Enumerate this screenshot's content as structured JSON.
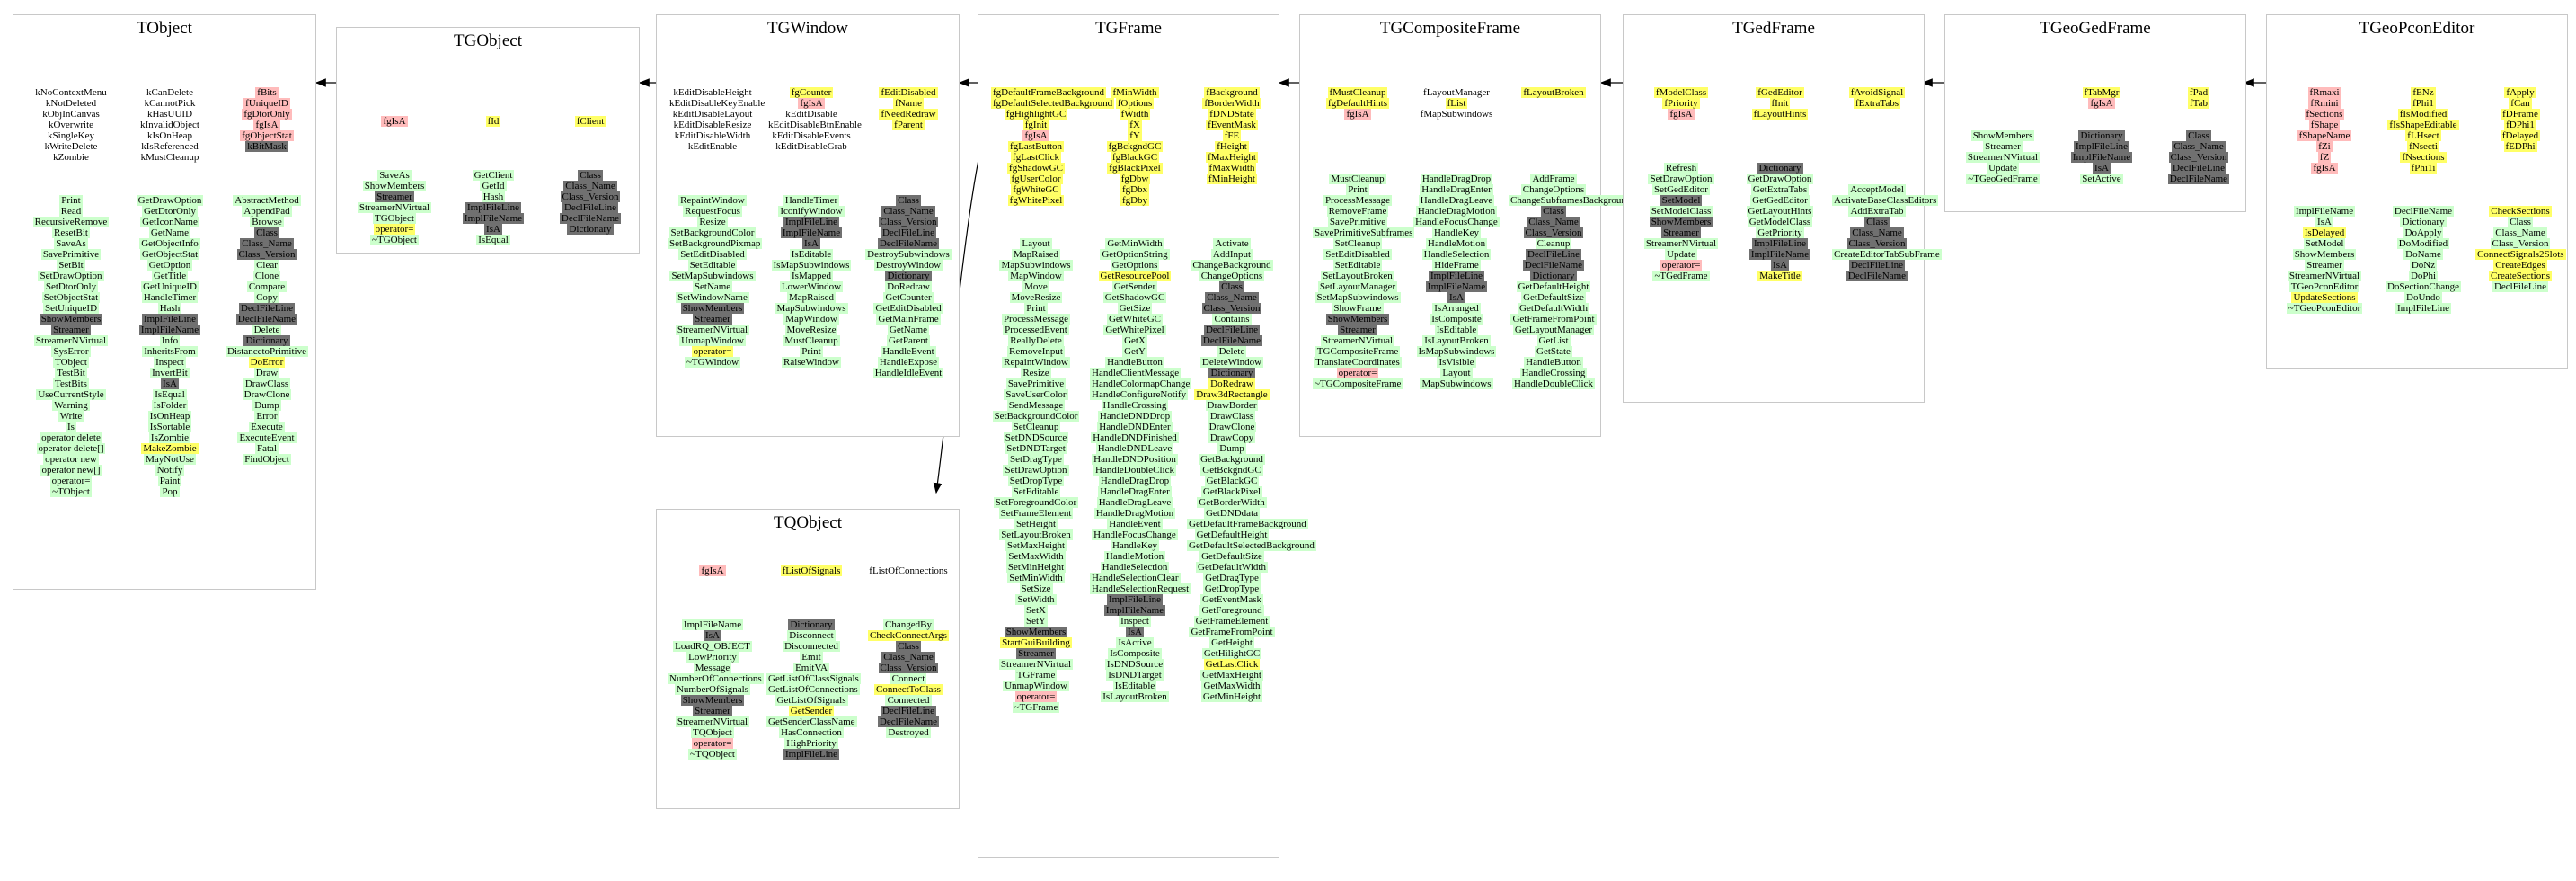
{
  "colors": {
    "public": "#ccffcc",
    "getter": "#ffff66",
    "protected": "#ffbbbb",
    "inherited": "#707070",
    "border": "#c8c8c8",
    "arrow": "#000000"
  },
  "classes": [
    {
      "id": "TObject",
      "title": "TObject",
      "cols": [
        [
          "d:kNoContextMenu",
          "d:kNotDeleted",
          "d:kObjInCanvas",
          "d:kOverwrite",
          "d:kSingleKey",
          "d:kWriteDelete",
          "d:kZombie",
          "",
          "",
          "",
          "p:Print",
          "p:Read",
          "p:RecursiveRemove",
          "p:ResetBit",
          "p:SaveAs",
          "p:SavePrimitive",
          "p:SetBit",
          "p:SetDrawOption",
          "p:SetDtorOnly",
          "p:SetObjectStat",
          "p:SetUniqueID",
          "i:ShowMembers",
          "i:Streamer",
          "p:StreamerNVirtual",
          "p:SysError",
          "p:TObject",
          "p:TestBit",
          "p:TestBits",
          "p:UseCurrentStyle",
          "p:Warning",
          "p:Write",
          "p:Is",
          "p:operator delete",
          "p:operator delete[]",
          "p:operator new",
          "p:operator new[]",
          "p:operator=",
          "p:~TObject"
        ],
        [
          "d:kCanDelete",
          "d:kCannotPick",
          "d:kHasUUID",
          "d:kInvalidObject",
          "d:kIsOnHeap",
          "d:kIsReferenced",
          "d:kMustCleanup",
          "",
          "",
          "",
          "p:GetDrawOption",
          "p:GetDtorOnly",
          "p:GetIconName",
          "p:GetName",
          "p:GetObjectInfo",
          "p:GetObjectStat",
          "p:GetOption",
          "p:GetTitle",
          "p:GetUniqueID",
          "p:HandleTimer",
          "p:Hash",
          "i:ImplFileLine",
          "i:ImplFileName",
          "p:Info",
          "p:InheritsFrom",
          "p:Inspect",
          "p:InvertBit",
          "i:IsA",
          "p:IsEqual",
          "p:IsFolder",
          "p:IsOnHeap",
          "p:IsSortable",
          "p:IsZombie",
          "g:MakeZombie",
          "p:MayNotUse",
          "p:Notify",
          "p:Paint",
          "p:Pop"
        ],
        [
          "r:fBits",
          "r:fUniqueID",
          "r:fgDtorOnly",
          "r:fgIsA",
          "r:fgObjectStat",
          "i:kBitMask",
          "",
          "",
          "",
          "",
          "p:AbstractMethod",
          "p:AppendPad",
          "p:Browse",
          "i:Class",
          "i:Class_Name",
          "i:Class_Version",
          "p:Clear",
          "p:Clone",
          "p:Compare",
          "p:Copy",
          "i:DeclFileLine",
          "i:DeclFileName",
          "p:Delete",
          "i:Dictionary",
          "p:DistancetoPrimitive",
          "g:DoError",
          "p:Draw",
          "p:DrawClass",
          "p:DrawClone",
          "p:Dump",
          "p:Error",
          "p:Execute",
          "p:ExecuteEvent",
          "p:Fatal",
          "p:FindObject"
        ]
      ]
    },
    {
      "id": "TGObject",
      "title": "TGObject",
      "cols": [
        [
          "r:fgIsA",
          "",
          "",
          "",
          "",
          "p:SaveAs",
          "p:ShowMembers",
          "i:Streamer",
          "p:StreamerNVirtual",
          "p:TGObject",
          "g:operator=",
          "p:~TGObject"
        ],
        [
          "g:fId",
          "",
          "",
          "",
          "",
          "p:GetClient",
          "p:GetId",
          "p:Hash",
          "i:ImplFileLine",
          "i:ImplFileName",
          "i:IsA",
          "p:IsEqual"
        ],
        [
          "g:fClient",
          "",
          "",
          "",
          "",
          "i:Class",
          "i:Class_Name",
          "i:Class_Version",
          "i:DeclFileLine",
          "i:DeclFileName",
          "i:Dictionary"
        ]
      ]
    },
    {
      "id": "TGWindow",
      "title": "TGWindow",
      "cols": [
        [
          "d:kEditDisableHeight",
          "d:kEditDisableKeyEnable",
          "d:kEditDisableLayout",
          "d:kEditDisableResize",
          "d:kEditDisableWidth",
          "d:kEditEnable",
          "",
          "",
          "",
          "",
          "p:RepaintWindow",
          "p:RequestFocus",
          "p:Resize",
          "p:SetBackgroundColor",
          "p:SetBackgroundPixmap",
          "p:SetEditDisabled",
          "p:SetEditable",
          "p:SetMapSubwindows",
          "p:SetName",
          "p:SetWindowName",
          "i:ShowMembers",
          "i:Streamer",
          "p:StreamerNVirtual",
          "p:UnmapWindow",
          "g:operator=",
          "p:~TGWindow"
        ],
        [
          "g:fgCounter",
          "r:fgIsA",
          "d:kEditDisable",
          "d:kEditDisableBtnEnable",
          "d:kEditDisableEvents",
          "d:kEditDisableGrab",
          "",
          "",
          "",
          "",
          "p:HandleTimer",
          "p:IconifyWindow",
          "i:ImplFileLine",
          "i:ImplFileName",
          "i:IsA",
          "p:IsEditable",
          "p:IsMapSubwindows",
          "p:IsMapped",
          "p:LowerWindow",
          "p:MapRaised",
          "p:MapSubwindows",
          "p:MapWindow",
          "p:MoveResize",
          "p:MustCleanup",
          "p:Print",
          "p:RaiseWindow"
        ],
        [
          "g:fEditDisabled",
          "g:fName",
          "g:fNeedRedraw",
          "g:fParent",
          "",
          "",
          "",
          "",
          "",
          "",
          "i:Class",
          "i:Class_Name",
          "i:Class_Version",
          "i:DeclFileLine",
          "i:DeclFileName",
          "p:DestroySubwindows",
          "p:DestroyWindow",
          "i:Dictionary",
          "p:DoRedraw",
          "p:GetCounter",
          "p:GetEditDisabled",
          "p:GetMainFrame",
          "p:GetName",
          "p:GetParent",
          "p:HandleEvent",
          "p:HandleExpose",
          "p:HandleIdleEvent"
        ]
      ]
    },
    {
      "id": "TQObject",
      "title": "TQObject",
      "cols": [
        [
          "r:fgIsA",
          "",
          "",
          "",
          "",
          "p:ImplFileName",
          "i:IsA",
          "p:LoadRQ_OBJECT",
          "p:LowPriority",
          "p:Message",
          "p:NumberOfConnections",
          "p:NumberOfSignals",
          "i:ShowMembers",
          "i:Streamer",
          "p:StreamerNVirtual",
          "p:TQObject",
          "r:operator=",
          "p:~TQObject"
        ],
        [
          "g:fListOfSignals",
          "",
          "",
          "",
          "",
          "i:Dictionary",
          "p:Disconnect",
          "p:Disconnected",
          "p:Emit",
          "p:EmitVA",
          "p:GetListOfClassSignals",
          "p:GetListOfConnections",
          "p:GetListOfSignals",
          "g:GetSender",
          "p:GetSenderClassName",
          "p:HasConnection",
          "p:HighPriority",
          "i:ImplFileLine"
        ],
        [
          "d:fListOfConnections",
          "",
          "",
          "",
          "",
          "p:ChangedBy",
          "g:CheckConnectArgs",
          "i:Class",
          "i:Class_Name",
          "i:Class_Version",
          "p:Connect",
          "g:ConnectToClass",
          "p:Connected",
          "i:DeclFileLine",
          "i:DeclFileName",
          "p:Destroyed"
        ]
      ]
    },
    {
      "id": "TGFrame",
      "title": "TGFrame",
      "cols": [
        [
          "g:fgDefaultFrameBackground",
          "g:fgDefaultSelectedBackground",
          "g:fgHighlightGC",
          "g:fgInit",
          "r:fgIsA",
          "g:fgLastButton",
          "g:fgLastClick",
          "g:fgShadowGC",
          "g:fgUserColor",
          "g:fgWhiteGC",
          "g:fgWhitePixel",
          "",
          "",
          "",
          "p:Layout",
          "p:MapRaised",
          "p:MapSubwindows",
          "p:MapWindow",
          "p:Move",
          "p:MoveResize",
          "p:Print",
          "p:ProcessMessage",
          "p:ProcessedEvent",
          "p:ReallyDelete",
          "p:RemoveInput",
          "p:RepaintWindow",
          "p:Resize",
          "p:SavePrimitive",
          "p:SaveUserColor",
          "p:SendMessage",
          "p:SetBackgroundColor",
          "p:SetCleanup",
          "p:SetDNDSource",
          "p:SetDNDTarget",
          "p:SetDragType",
          "p:SetDrawOption",
          "p:SetDropType",
          "p:SetEditable",
          "p:SetForegroundColor",
          "p:SetFrameElement",
          "p:SetHeight",
          "p:SetLayoutBroken",
          "p:SetMaxHeight",
          "p:SetMaxWidth",
          "p:SetMinHeight",
          "p:SetMinWidth",
          "p:SetSize",
          "p:SetWidth",
          "p:SetX",
          "p:SetY",
          "i:ShowMembers",
          "g:StartGuiBuilding",
          "i:Streamer",
          "p:StreamerNVirtual",
          "p:TGFrame",
          "p:UnmapWindow",
          "r:operator=",
          "p:~TGFrame"
        ],
        [
          "g:fMinWidth",
          "g:fOptions",
          "g:fWidth",
          "g:fX",
          "g:fY",
          "g:fgBckgndGC",
          "g:fgBlackGC",
          "g:fgBlackPixel",
          "g:fgDbw",
          "g:fgDbx",
          "g:fgDby",
          "",
          "",
          "",
          "p:GetMinWidth",
          "p:GetOptionString",
          "p:GetOptions",
          "g:GetResourcePool",
          "p:GetSender",
          "p:GetShadowGC",
          "p:GetSize",
          "p:GetWhiteGC",
          "p:GetWhitePixel",
          "p:GetX",
          "p:GetY",
          "p:HandleButton",
          "p:HandleClientMessage",
          "p:HandleColormapChange",
          "p:HandleConfigureNotify",
          "p:HandleCrossing",
          "p:HandleDNDDrop",
          "p:HandleDNDEnter",
          "p:HandleDNDFinished",
          "p:HandleDNDLeave",
          "p:HandleDNDPosition",
          "p:HandleDoubleClick",
          "p:HandleDragDrop",
          "p:HandleDragEnter",
          "p:HandleDragLeave",
          "p:HandleDragMotion",
          "p:HandleEvent",
          "p:HandleFocusChange",
          "p:HandleKey",
          "p:HandleMotion",
          "p:HandleSelection",
          "p:HandleSelectionClear",
          "p:HandleSelectionRequest",
          "i:ImplFileLine",
          "i:ImplFileName",
          "p:Inspect",
          "i:IsA",
          "p:IsActive",
          "p:IsComposite",
          "p:IsDNDSource",
          "p:IsDNDTarget",
          "p:IsEditable",
          "p:IsLayoutBroken"
        ],
        [
          "g:fBackground",
          "g:fBorderWidth",
          "g:fDNDState",
          "g:fEventMask",
          "g:fFE",
          "g:fHeight",
          "g:fMaxHeight",
          "g:fMaxWidth",
          "g:fMinHeight",
          "",
          "",
          "",
          "",
          "",
          "p:Activate",
          "p:AddInput",
          "p:ChangeBackground",
          "p:ChangeOptions",
          "i:Class",
          "i:Class_Name",
          "i:Class_Version",
          "p:Contains",
          "i:DeclFileLine",
          "i:DeclFileName",
          "p:Delete",
          "p:DeleteWindow",
          "i:Dictionary",
          "g:DoRedraw",
          "g:Draw3dRectangle",
          "p:DrawBorder",
          "p:DrawClass",
          "p:DrawClone",
          "p:DrawCopy",
          "p:Dump",
          "p:GetBackground",
          "p:GetBckgndGC",
          "p:GetBlackGC",
          "p:GetBlackPixel",
          "p:GetBorderWidth",
          "p:GetDNDdata",
          "p:GetDefaultFrameBackground",
          "p:GetDefaultHeight",
          "p:GetDefaultSelectedBackground",
          "p:GetDefaultSize",
          "p:GetDefaultWidth",
          "p:GetDragType",
          "p:GetDropType",
          "p:GetEventMask",
          "p:GetForeground",
          "p:GetFrameElement",
          "p:GetFrameFromPoint",
          "p:GetHeight",
          "p:GetHilightGC",
          "g:GetLastClick",
          "p:GetMaxHeight",
          "p:GetMaxWidth",
          "p:GetMinHeight"
        ]
      ]
    },
    {
      "id": "TGCompositeFrame",
      "title": "TGCompositeFrame",
      "cols": [
        [
          "g:fMustCleanup",
          "g:fgDefaultHints",
          "r:fgIsA",
          "",
          "",
          "",
          "",
          "",
          "p:MustCleanup",
          "p:Print",
          "p:ProcessMessage",
          "p:RemoveFrame",
          "p:SavePrimitive",
          "p:SavePrimitiveSubframes",
          "p:SetCleanup",
          "p:SetEditDisabled",
          "p:SetEditable",
          "p:SetLayoutBroken",
          "p:SetLayoutManager",
          "p:SetMapSubwindows",
          "p:ShowFrame",
          "i:ShowMembers",
          "i:Streamer",
          "p:StreamerNVirtual",
          "p:TGCompositeFrame",
          "p:TranslateCoordinates",
          "r:operator=",
          "p:~TGCompositeFrame"
        ],
        [
          "d:fLayoutManager",
          "g:fList",
          "d:fMapSubwindows",
          "",
          "",
          "",
          "",
          "",
          "p:HandleDragDrop",
          "p:HandleDragEnter",
          "p:HandleDragLeave",
          "p:HandleDragMotion",
          "p:HandleFocusChange",
          "p:HandleKey",
          "p:HandleMotion",
          "p:HandleSelection",
          "p:HideFrame",
          "i:ImplFileLine",
          "i:ImplFileName",
          "i:IsA",
          "p:IsArranged",
          "p:IsComposite",
          "p:IsEditable",
          "p:IsLayoutBroken",
          "p:IsMapSubwindows",
          "p:IsVisible",
          "p:Layout",
          "p:MapSubwindows"
        ],
        [
          "g:fLayoutBroken",
          "",
          "",
          "",
          "",
          "",
          "",
          "",
          "p:AddFrame",
          "p:ChangeOptions",
          "p:ChangeSubframesBackground",
          "i:Class",
          "i:Class_Name",
          "i:Class_Version",
          "p:Cleanup",
          "i:DeclFileLine",
          "i:DeclFileName",
          "i:Dictionary",
          "p:GetDefaultHeight",
          "p:GetDefaultSize",
          "p:GetDefaultWidth",
          "p:GetFrameFromPoint",
          "p:GetLayoutManager",
          "p:GetList",
          "p:GetState",
          "p:HandleButton",
          "p:HandleCrossing",
          "p:HandleDoubleClick"
        ]
      ]
    },
    {
      "id": "TGedFrame",
      "title": "TGedFrame",
      "cols": [
        [
          "g:fModelClass",
          "g:fPriority",
          "r:fgIsA",
          "",
          "",
          "",
          "",
          "p:Refresh",
          "p:SetDrawOption",
          "p:SetGedEditor",
          "i:SetModel",
          "p:SetModelClass",
          "i:ShowMembers",
          "i:Streamer",
          "p:StreamerNVirtual",
          "p:Update",
          "r:operator=",
          "p:~TGedFrame"
        ],
        [
          "g:fGedEditor",
          "g:fInit",
          "g:fLayoutHints",
          "",
          "",
          "",
          "",
          "i:Dictionary",
          "p:GetDrawOption",
          "p:GetExtraTabs",
          "p:GetGedEditor",
          "p:GetLayoutHints",
          "p:GetModelClass",
          "p:GetPriority",
          "i:ImplFileLine",
          "i:ImplFileName",
          "i:IsA",
          "g:MakeTitle"
        ],
        [
          "g:fAvoidSignal",
          "g:fExtraTabs",
          "",
          "",
          "",
          "",
          "",
          "",
          "",
          "p:AcceptModel",
          "p:ActivateBaseClassEditors",
          "p:AddExtraTab",
          "i:Class",
          "i:Class_Name",
          "i:Class_Version",
          "p:CreateEditorTabSubFrame",
          "i:DeclFileLine",
          "i:DeclFileName"
        ]
      ]
    },
    {
      "id": "TGeoGedFrame",
      "title": "TGeoGedFrame",
      "cols": [
        [
          "",
          "",
          "",
          "",
          "p:ShowMembers",
          "p:Streamer",
          "p:StreamerNVirtual",
          "p:Update",
          "p:~TGeoGedFrame"
        ],
        [
          "g:fTabMgr",
          "r:fgIsA",
          "",
          "",
          "i:Dictionary",
          "i:ImplFileLine",
          "i:ImplFileName",
          "i:IsA",
          "p:SetActive"
        ],
        [
          "g:fPad",
          "g:fTab",
          "",
          "",
          "i:Class",
          "i:Class_Name",
          "i:Class_Version",
          "i:DeclFileLine",
          "i:DeclFileName"
        ]
      ]
    },
    {
      "id": "TGeoPconEditor",
      "title": "TGeoPconEditor",
      "cols": [
        [
          "r:fRmaxi",
          "r:fRmini",
          "r:fSections",
          "r:fShape",
          "r:fShapeName",
          "r:fZi",
          "r:fZ",
          "r:fgIsA",
          "",
          "",
          "",
          "p:ImplFileName",
          "p:IsA",
          "g:IsDelayed",
          "p:SetModel",
          "p:ShowMembers",
          "p:Streamer",
          "p:StreamerNVirtual",
          "p:TGeoPconEditor",
          "g:UpdateSections",
          "p:~TGeoPconEditor"
        ],
        [
          "g:fENz",
          "g:fPhi1",
          "g:fIsModified",
          "g:fIsShapeEditable",
          "g:fLHsect",
          "g:fNsecti",
          "g:fNsections",
          "g:fPhi1i",
          "",
          "",
          "",
          "p:DeclFileName",
          "p:Dictionary",
          "p:DoApply",
          "p:DoModified",
          "p:DoName",
          "p:DoNz",
          "p:DoPhi",
          "p:DoSectionChange",
          "p:DoUndo",
          "p:ImplFileLine"
        ],
        [
          "g:fApply",
          "g:fCan",
          "g:fDFrame",
          "g:fDPhi1",
          "g:fDelayed",
          "g:fEDPhi",
          "",
          "",
          "",
          "",
          "",
          "g:CheckSections",
          "p:Class",
          "p:Class_Name",
          "p:Class_Version",
          "g:ConnectSignals2Slots",
          "g:CreateEdges",
          "g:CreateSections",
          "p:DeclFileLine"
        ]
      ]
    }
  ]
}
